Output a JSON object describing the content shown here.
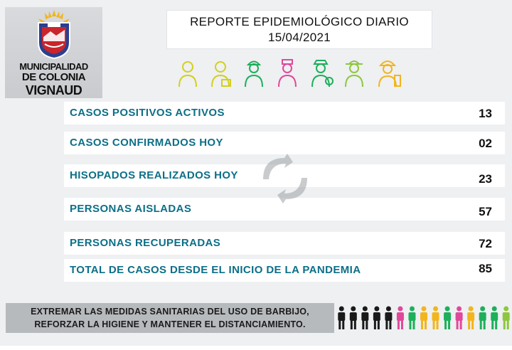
{
  "logo": {
    "line1": "MUNICIPALIDAD",
    "line2": "DE COLONIA",
    "line3": "VIGNAUD",
    "colors": {
      "blue": "#2b3f8f",
      "red": "#c9252b",
      "yellow": "#f2b51d"
    }
  },
  "header": {
    "title": "REPORTE EPIDEMIOLÓGICO DIARIO",
    "date": "15/04/2021"
  },
  "worker_icons": [
    {
      "icon": "worker-person-icon",
      "color": "#d4cf1c"
    },
    {
      "icon": "doctor-icon",
      "color": "#d4cf1c"
    },
    {
      "icon": "construction-worker-icon",
      "color": "#1eaf5a"
    },
    {
      "icon": "nurse-icon",
      "color": "#e0489a"
    },
    {
      "icon": "police-officer-icon",
      "color": "#1eaf5a"
    },
    {
      "icon": "farmer-icon",
      "color": "#8fc63f"
    },
    {
      "icon": "firefighter-icon",
      "color": "#f2b51d"
    }
  ],
  "stats": [
    {
      "label": "CASOS POSITIVOS ACTIVOS",
      "value": "13"
    },
    {
      "label": "CASOS CONFIRMADOS HOY",
      "value": "02"
    },
    {
      "label": "HISOPADOS REALIZADOS HOY",
      "value": "23"
    },
    {
      "label": "PERSONAS AISLADAS",
      "value": "57"
    },
    {
      "label": "PERSONAS RECUPERADAS",
      "value": "72"
    },
    {
      "label": "TOTAL DE CASOS DESDE EL INICIO DE LA PANDEMIA",
      "value": "85"
    }
  ],
  "footer": {
    "line1": "EXTREMAR LAS MEDIDAS SANITARIAS DEL USO DE BARBIJO,",
    "line2": "REFORZAR LA HIGIENE Y MANTENER EL DISTANCIAMIENTO."
  },
  "people_icons": {
    "icon": "person-icon",
    "colors": [
      "#1a1a1a",
      "#1a1a1a",
      "#1a1a1a",
      "#1a1a1a",
      "#1a1a1a",
      "#e0489a",
      "#1eaf5a",
      "#f2b51d",
      "#f2b51d",
      "#1eaf5a",
      "#e0489a",
      "#f2b51d",
      "#1eaf5a",
      "#1eaf5a",
      "#8fc63f"
    ]
  }
}
